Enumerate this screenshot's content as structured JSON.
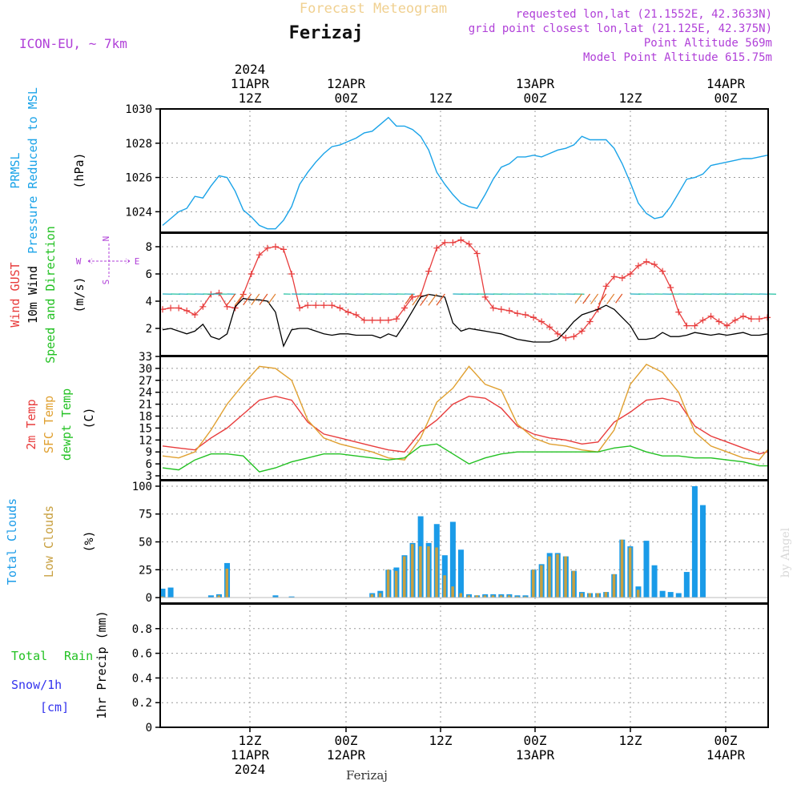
{
  "header": {
    "title": "Forecast Meteogram",
    "station": "Ferizaj",
    "model": "ICON-EU, ~ 7km",
    "requested": "requested lon,lat (21.1552E, 42.3633N)",
    "grid_point": "grid point closest lon,lat (21.125E, 42.375N)",
    "point_altitude": "Point Altitude 569m",
    "model_altitude": "Model Point Altitude 615.75m"
  },
  "time_axis": {
    "top_year": "2024",
    "top_labels": [
      {
        "date": "11APR",
        "hour": "12Z"
      },
      {
        "date": "12APR",
        "hour": "00Z"
      },
      {
        "date": "",
        "hour": "12Z"
      },
      {
        "date": "13APR",
        "hour": "00Z"
      },
      {
        "date": "",
        "hour": "12Z"
      },
      {
        "date": "14APR",
        "hour": "00Z"
      }
    ],
    "bottom_labels": [
      {
        "hour": "12Z",
        "date": "11APR",
        "year": "2024"
      },
      {
        "hour": "00Z",
        "date": "12APR",
        "year": ""
      },
      {
        "hour": "12Z",
        "date": "",
        "year": ""
      },
      {
        "hour": "00Z",
        "date": "13APR",
        "year": ""
      },
      {
        "hour": "12Z",
        "date": "",
        "year": ""
      },
      {
        "hour": "00Z",
        "date": "14APR",
        "year": ""
      }
    ],
    "footer_station": "Ferizaj",
    "watermark": "by Angel"
  },
  "colors": {
    "pressure": "#1aa3e8",
    "gust": "#e83c3c",
    "wind": "#000000",
    "wind_dir_label": "#22c122",
    "sfc_temp": "#e0a030",
    "dewpoint": "#22c122",
    "total_clouds": "#1a9be8",
    "low_clouds": "#c8a040",
    "rain": "#22c122",
    "snow": "#3333ee",
    "purple": "#b040d8"
  },
  "chart_data": [
    {
      "type": "line",
      "panel": "pressure",
      "label_line1": "PRMSL",
      "label_line2": "Pressure Reduced to MSL",
      "units": "(hPa)",
      "ylim": [
        1022.8,
        1030
      ],
      "yticks": [
        "1024",
        "1026",
        "1028",
        "1030"
      ],
      "x_hours": [
        0,
        3,
        6,
        9,
        12,
        15,
        18,
        21,
        24,
        27,
        30,
        33,
        36,
        39,
        42,
        45,
        48,
        51,
        54,
        57,
        60,
        63,
        66,
        69,
        72,
        75,
        78,
        81,
        84,
        87,
        90,
        93,
        96,
        99,
        102,
        105,
        108,
        111,
        114,
        117,
        120,
        123,
        126,
        129,
        132,
        135,
        138,
        141,
        144,
        147,
        150,
        153,
        156,
        159,
        162,
        165,
        168,
        171,
        174,
        177,
        180,
        183,
        186,
        189,
        192,
        195,
        198,
        201,
        204,
        207,
        210,
        213,
        216,
        219,
        222,
        225
      ],
      "series": [
        {
          "name": "",
          "values": [
            1023.2,
            1023.6,
            1024.0,
            1024.2,
            1024.9,
            1024.8,
            1025.5,
            1026.1,
            1026.0,
            1025.2,
            1024.1,
            1023.7,
            1023.2,
            1023.0,
            1023.0,
            1023.5,
            1024.3,
            1025.6,
            1026.3,
            1026.9,
            1027.4,
            1027.8,
            1027.9,
            1028.1,
            1028.3,
            1028.6,
            1028.7,
            1029.1,
            1029.5,
            1029.0,
            1029.0,
            1028.8,
            1028.4,
            1027.6,
            1026.3,
            1025.6,
            1025.0,
            1024.5,
            1024.3,
            1024.2,
            1025.0,
            1025.9,
            1026.6,
            1026.8,
            1027.2,
            1027.2,
            1027.3,
            1027.2,
            1027.4,
            1027.6,
            1027.7,
            1027.9,
            1028.4,
            1028.2,
            1028.2,
            1028.2,
            1027.7,
            1026.8,
            1025.7,
            1024.5,
            1023.9,
            1023.6,
            1023.7,
            1024.3,
            1025.1,
            1025.9,
            1026.0,
            1026.2,
            1026.7,
            1026.8,
            1026.9,
            1027.0,
            1027.1,
            1027.1,
            1027.2,
            1027.3
          ]
        }
      ]
    },
    {
      "type": "line",
      "panel": "wind",
      "label_gust": "Wind GUST",
      "label_wind": "10m Wind",
      "label_dir": "Speed and Direction",
      "units": "(m/s)",
      "compass": {
        "n": "N",
        "s": "S",
        "w": "W",
        "e": "E"
      },
      "ylim": [
        0,
        9
      ],
      "yticks": [
        "2",
        "4",
        "6",
        "8"
      ],
      "x_hours": [
        0,
        3,
        6,
        9,
        12,
        15,
        18,
        21,
        24,
        27,
        30,
        33,
        36,
        39,
        42,
        45,
        48,
        51,
        54,
        57,
        60,
        63,
        66,
        69,
        72,
        75,
        78,
        81,
        84,
        87,
        90,
        93,
        96,
        99,
        102,
        105,
        108,
        111,
        114,
        117,
        120,
        123,
        126,
        129,
        132,
        135,
        138,
        141,
        144,
        147,
        150,
        153,
        156,
        159,
        162,
        165,
        168,
        171,
        174,
        177,
        180,
        183,
        186,
        189,
        192,
        195,
        198,
        201,
        204,
        207,
        210,
        213,
        216,
        219,
        222,
        225
      ],
      "series": [
        {
          "name": "Wind GUST",
          "values": [
            3.4,
            3.5,
            3.5,
            3.3,
            3.0,
            3.6,
            4.5,
            4.6,
            3.6,
            3.5,
            4.5,
            6.0,
            7.4,
            7.9,
            8.0,
            7.8,
            6.0,
            3.5,
            3.7,
            3.7,
            3.7,
            3.7,
            3.5,
            3.2,
            3.0,
            2.6,
            2.6,
            2.6,
            2.6,
            2.7,
            3.5,
            4.3,
            4.4,
            6.2,
            7.9,
            8.3,
            8.3,
            8.5,
            8.2,
            7.5,
            4.3,
            3.5,
            3.4,
            3.3,
            3.1,
            3.0,
            2.8,
            2.5,
            2.1,
            1.6,
            1.3,
            1.4,
            1.8,
            2.5,
            3.4,
            5.1,
            5.8,
            5.7,
            6.0,
            6.6,
            6.9,
            6.7,
            6.2,
            5.0,
            3.2,
            2.2,
            2.2,
            2.6,
            2.9,
            2.5,
            2.2,
            2.6,
            2.9,
            2.7,
            2.7,
            2.8
          ]
        },
        {
          "name": "10m Wind",
          "values": [
            1.9,
            2.0,
            1.8,
            1.6,
            1.8,
            2.3,
            1.4,
            1.2,
            1.6,
            3.6,
            4.2,
            4.1,
            4.1,
            4.0,
            3.2,
            0.7,
            1.9,
            2.0,
            2.0,
            1.8,
            1.6,
            1.5,
            1.6,
            1.6,
            1.5,
            1.5,
            1.5,
            1.3,
            1.6,
            1.4,
            2.3,
            3.3,
            4.3,
            4.5,
            4.4,
            4.3,
            2.4,
            1.8,
            2.0,
            1.9,
            1.8,
            1.7,
            1.6,
            1.4,
            1.2,
            1.1,
            1.0,
            1.0,
            1.0,
            1.2,
            1.8,
            2.5,
            3.0,
            3.2,
            3.4,
            3.7,
            3.4,
            2.8,
            2.2,
            1.2,
            1.2,
            1.3,
            1.7,
            1.4,
            1.4,
            1.5,
            1.7,
            1.6,
            1.5,
            1.6,
            1.5,
            1.6,
            1.7,
            1.5,
            1.5,
            1.6
          ]
        }
      ]
    },
    {
      "type": "line",
      "panel": "temperature",
      "label_t2m": "2m Temp",
      "label_sfc": "SFC Temp",
      "label_dew": "dewpt Temp",
      "units": "(C)",
      "ylim": [
        2,
        33
      ],
      "yticks": [
        "3",
        "6",
        "9",
        "12",
        "15",
        "18",
        "21",
        "24",
        "27",
        "30",
        "33"
      ],
      "x_hours": [
        0,
        6,
        12,
        18,
        24,
        30,
        36,
        42,
        48,
        54,
        60,
        66,
        72,
        78,
        84,
        90,
        96,
        102,
        108,
        114,
        120,
        126,
        132,
        138,
        144,
        150,
        156,
        162,
        168,
        174,
        180,
        186,
        192,
        198,
        204,
        210,
        216,
        222,
        225
      ],
      "series": [
        {
          "name": "2m Temp",
          "values": [
            10.5,
            10.0,
            9.5,
            12.5,
            15.0,
            18.5,
            22.0,
            23.0,
            22.0,
            16.5,
            13.5,
            12.5,
            11.5,
            10.5,
            9.5,
            9.0,
            14.0,
            17.0,
            21.0,
            23.0,
            22.5,
            20.0,
            15.5,
            13.5,
            12.5,
            12.0,
            11.0,
            11.5,
            16.5,
            19.0,
            22.0,
            22.5,
            21.5,
            15.5,
            13.0,
            11.5,
            10.0,
            8.5,
            9.0
          ]
        },
        {
          "name": "SFC Temp",
          "values": [
            8.0,
            7.5,
            9.0,
            14.5,
            21.0,
            26.0,
            30.5,
            30.0,
            27.0,
            17.0,
            12.5,
            11.0,
            10.0,
            9.0,
            7.5,
            7.0,
            12.5,
            21.5,
            25.0,
            30.5,
            26.0,
            24.5,
            16.0,
            12.5,
            11.0,
            10.5,
            9.5,
            9.0,
            14.5,
            26.0,
            31.0,
            29.0,
            24.0,
            14.0,
            10.5,
            9.0,
            7.5,
            7.0,
            9.5
          ]
        },
        {
          "name": "dewpt Temp",
          "values": [
            5.0,
            4.5,
            7.0,
            8.5,
            8.5,
            8.0,
            4.0,
            5.0,
            6.5,
            7.5,
            8.5,
            8.5,
            8.0,
            7.5,
            7.0,
            7.5,
            10.5,
            11.0,
            8.5,
            6.0,
            7.5,
            8.5,
            9.0,
            9.0,
            9.0,
            9.0,
            9.0,
            9.0,
            10.0,
            10.5,
            9.0,
            8.0,
            8.0,
            7.5,
            7.5,
            7.0,
            6.5,
            5.5,
            5.5
          ]
        }
      ]
    },
    {
      "type": "bar",
      "panel": "clouds",
      "label_total": "Total Clouds",
      "label_low": "Low Clouds",
      "units": "(%)",
      "ylim": [
        -5,
        105
      ],
      "yticks": [
        "0",
        "25",
        "50",
        "75",
        "100"
      ],
      "x_hours": [
        0,
        3,
        6,
        9,
        12,
        15,
        18,
        21,
        24,
        27,
        30,
        33,
        36,
        39,
        42,
        45,
        48,
        51,
        54,
        57,
        60,
        63,
        66,
        69,
        72,
        75,
        78,
        81,
        84,
        87,
        90,
        93,
        96,
        99,
        102,
        105,
        108,
        111,
        114,
        117,
        120,
        123,
        126,
        129,
        132,
        135,
        138,
        141,
        144,
        147,
        150,
        153,
        156,
        159,
        162,
        165,
        168,
        171,
        174,
        177,
        180,
        183,
        186,
        189,
        192,
        195,
        198,
        201,
        204,
        207,
        210,
        213,
        216,
        219,
        222,
        225
      ],
      "series": [
        {
          "name": "Total Clouds",
          "values": [
            8,
            9,
            0,
            0,
            0,
            0,
            2,
            3,
            31,
            0,
            0,
            0,
            0,
            0,
            2,
            0,
            1,
            0,
            0,
            0,
            0,
            0,
            0,
            0,
            0,
            0,
            4,
            6,
            25,
            27,
            38,
            49,
            73,
            49,
            66,
            38,
            68,
            43,
            3,
            2,
            3,
            3,
            3,
            3,
            2,
            2,
            25,
            30,
            40,
            40,
            37,
            24,
            5,
            4,
            4,
            5,
            21,
            52,
            46,
            10,
            51,
            29,
            6,
            5,
            4,
            23,
            100,
            83,
            0,
            0,
            0,
            0,
            0,
            0,
            0,
            0
          ]
        },
        {
          "name": "Low Clouds",
          "values": [
            1,
            0,
            0,
            0,
            0,
            0,
            0,
            2,
            26,
            0,
            0,
            0,
            0,
            0,
            0,
            0,
            0,
            0,
            0,
            0,
            0,
            0,
            0,
            0,
            0,
            0,
            3,
            4,
            25,
            24,
            37,
            48,
            46,
            46,
            45,
            20,
            10,
            4,
            2,
            2,
            2,
            2,
            2,
            2,
            1,
            1,
            25,
            29,
            37,
            39,
            37,
            24,
            4,
            4,
            4,
            5,
            21,
            52,
            45,
            7,
            0,
            0,
            0,
            0,
            0,
            0,
            0,
            0,
            0,
            0,
            0,
            0,
            0,
            0,
            0,
            0
          ]
        }
      ]
    },
    {
      "type": "bar",
      "panel": "precip",
      "label_total": "Total",
      "label_rain": "Rain",
      "label_snow": "Snow/1h",
      "label_snow_unit": "[cm]",
      "units": "1hr Precip (mm)",
      "ylim": [
        0,
        1.0
      ],
      "yticks": [
        "0",
        "0.2",
        "0.4",
        "0.6",
        "0.8"
      ],
      "x_hours": [],
      "series": [
        {
          "name": "Total",
          "values": []
        },
        {
          "name": "Rain",
          "values": []
        },
        {
          "name": "Snow/1h",
          "values": []
        }
      ]
    }
  ]
}
